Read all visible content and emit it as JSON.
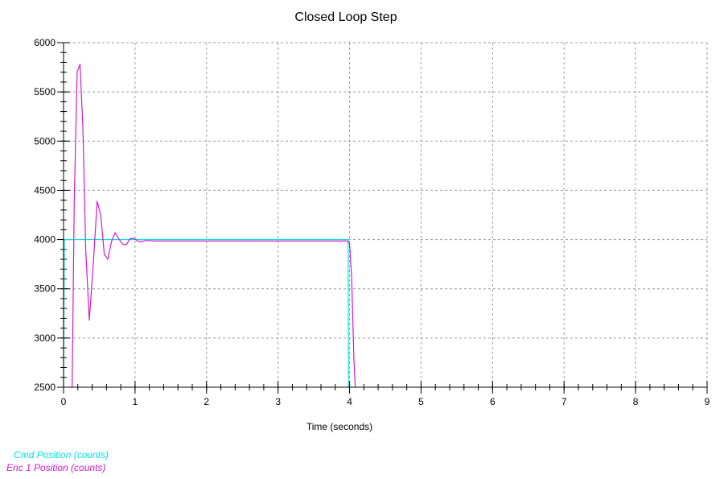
{
  "chart_data": {
    "type": "line",
    "title": "Closed Loop Step",
    "xlabel": "Time (seconds)",
    "ylabel": "",
    "xlim": [
      0,
      9
    ],
    "ylim": [
      2500,
      6000
    ],
    "x_ticks": [
      "0",
      "1",
      "2",
      "3",
      "4",
      "5",
      "6",
      "7",
      "8",
      "9"
    ],
    "y_ticks": [
      "2500",
      "3000",
      "3500",
      "4000",
      "4500",
      "5000",
      "5500",
      "6000"
    ],
    "grid": true,
    "legend_position": "bottom-left",
    "series": [
      {
        "name": "Cmd Position (counts)",
        "color": "#00e5e5",
        "x": [
          0.0,
          0.01,
          3.98,
          3.985,
          3.99
        ],
        "y": [
          2500,
          4000,
          4000,
          2500,
          2500
        ]
      },
      {
        "name": "Enc 1 Position (counts)",
        "color": "#d11ad1",
        "x": [
          0.12,
          0.15,
          0.19,
          0.23,
          0.27,
          0.31,
          0.36,
          0.42,
          0.47,
          0.52,
          0.57,
          0.62,
          0.67,
          0.72,
          0.78,
          0.83,
          0.88,
          0.93,
          0.99,
          1.05,
          1.1,
          1.15,
          1.2,
          1.27,
          2.0,
          3.0,
          3.97,
          4.0,
          4.03,
          4.06,
          4.08
        ],
        "y": [
          2500,
          4400,
          5700,
          5780,
          5150,
          3900,
          3180,
          3800,
          4390,
          4250,
          3850,
          3800,
          3980,
          4070,
          4000,
          3950,
          3950,
          4010,
          4010,
          3980,
          3980,
          3990,
          3990,
          3985,
          3985,
          3985,
          3985,
          3960,
          3600,
          2800,
          2500
        ]
      }
    ]
  }
}
